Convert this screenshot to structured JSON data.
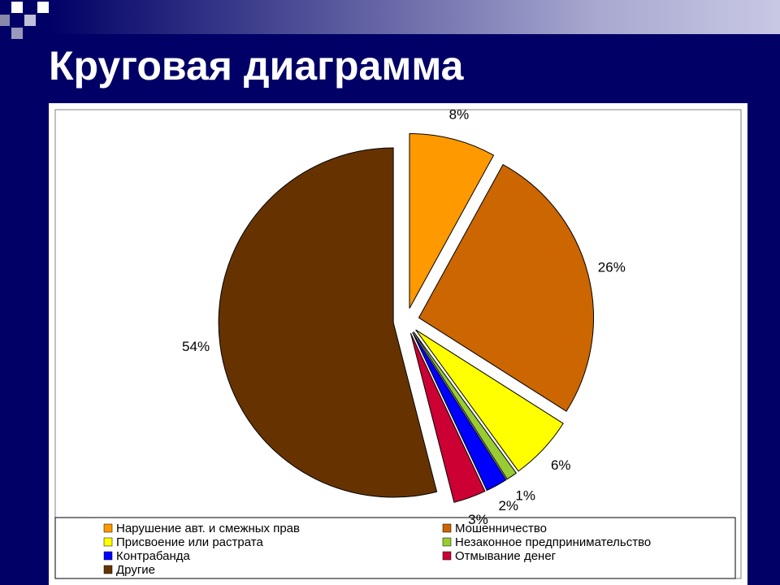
{
  "chart_data": {
    "type": "pie",
    "title": "Круговая диаграмма",
    "categories": [
      "Нарушение авт. и смежных прав",
      "Мошенничество",
      "Присвоение или растрата",
      "Незаконное предпринимательство",
      "Контрабанда",
      "Отмывание денег",
      "Другие"
    ],
    "values": [
      8,
      26,
      6,
      1,
      2,
      3,
      54
    ],
    "value_labels": [
      "8%",
      "26%",
      "6%",
      "1%",
      "2%",
      "3%",
      "54%"
    ],
    "colors": [
      "#ff9900",
      "#cc6600",
      "#ffff00",
      "#99cc33",
      "#0000ff",
      "#cc0033",
      "#663300"
    ]
  }
}
